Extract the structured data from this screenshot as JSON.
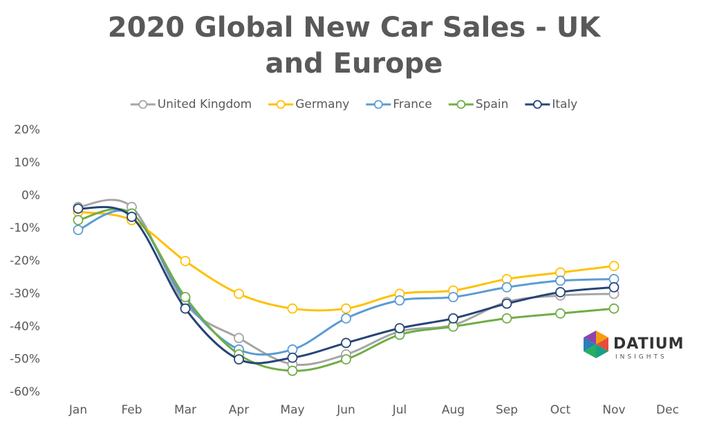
{
  "chart_data": {
    "type": "line",
    "title": "2020 Global New Car Sales - UK and Europe",
    "categories": [
      "Jan",
      "Feb",
      "Mar",
      "Apr",
      "May",
      "Jun",
      "Jul",
      "Aug",
      "Sep",
      "Oct",
      "Nov",
      "Dec"
    ],
    "series": [
      {
        "name": "United Kingdom",
        "color": "#a5a5a5",
        "values": [
          -3.5,
          -3.5,
          -33,
          -43.5,
          -51.5,
          -48.5,
          -41.5,
          -39.5,
          -32.5,
          -30.5,
          -30,
          null
        ]
      },
      {
        "name": "Germany",
        "color": "#ffc000",
        "values": [
          -5,
          -7.5,
          -20,
          -30,
          -34.5,
          -34.5,
          -30,
          -29,
          -25.5,
          -23.5,
          -21.5,
          null
        ]
      },
      {
        "name": "France",
        "color": "#5b9bd5",
        "values": [
          -10.5,
          -5.5,
          -32,
          -47,
          -47,
          -37.5,
          -32,
          -31,
          -28,
          -26,
          -25.5,
          null
        ]
      },
      {
        "name": "Spain",
        "color": "#70ad47",
        "values": [
          -7.5,
          -5.5,
          -31,
          -48.5,
          -53.5,
          -50,
          -42.5,
          -40,
          -37.5,
          -36,
          -34.5,
          null
        ]
      },
      {
        "name": "Italy",
        "color": "#264478",
        "values": [
          -4,
          -6.5,
          -34.5,
          -50,
          -49.5,
          -45,
          -40.5,
          -37.5,
          -33,
          -29.5,
          -28,
          null
        ]
      }
    ],
    "ylim": [
      -60,
      20
    ],
    "yticks": [
      {
        "value": -60,
        "label": "-60%"
      },
      {
        "value": -50,
        "label": "-50%"
      },
      {
        "value": -40,
        "label": "-40%"
      },
      {
        "value": -30,
        "label": "-30%"
      },
      {
        "value": -20,
        "label": "-20%"
      },
      {
        "value": -10,
        "label": "-10%"
      },
      {
        "value": 0,
        "label": "0%"
      },
      {
        "value": 10,
        "label": "10%"
      },
      {
        "value": 20,
        "label": "20%"
      }
    ],
    "grid": false,
    "smooth": true,
    "legend": "top"
  },
  "logo": {
    "name": "DATIUM",
    "tagline": "INSIGHTS"
  }
}
